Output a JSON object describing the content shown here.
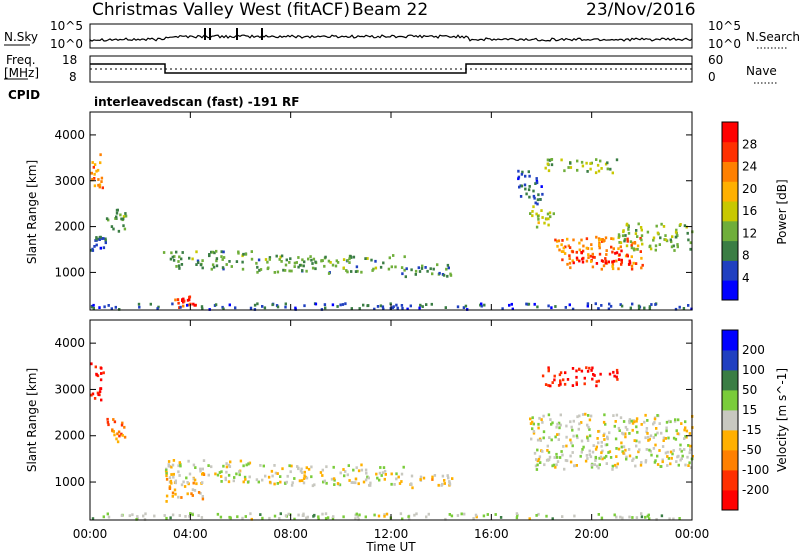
{
  "header": {
    "title": "Christmas Valley West (fitACF)",
    "beam": "Beam 22",
    "date": "23/Nov/2016"
  },
  "noise_panel": {
    "left_label": "N.Sky",
    "right_label": "N.Search",
    "left_ticks": [
      "10^5",
      "10^0"
    ],
    "right_ticks": [
      "10^5",
      "10^0"
    ]
  },
  "freq_panel": {
    "left_label_1": "Freq.",
    "left_label_2": "[MHz]",
    "right_label": "Nave",
    "left_ticks": [
      "18",
      "8"
    ],
    "right_ticks": [
      "60",
      "0"
    ]
  },
  "cpid": {
    "label": "CPID",
    "text": "interleavedscan (fast) -191 RF"
  },
  "axes": {
    "ylabel": "Slant Range [km]",
    "xlabel": "Time UT",
    "yticks": [
      "4000",
      "3000",
      "2000",
      "1000"
    ],
    "xticks": [
      "00:00",
      "04:00",
      "08:00",
      "12:00",
      "16:00",
      "20:00",
      "00:00"
    ]
  },
  "chart_data": [
    {
      "type": "heatmap",
      "title": "",
      "xlabel": "Time UT",
      "ylabel": "Slant Range [km]",
      "xlim": [
        0,
        24
      ],
      "ylim": [
        180,
        4500
      ],
      "colorbar": {
        "label": "Power [dB]",
        "ticks": [
          "28",
          "24",
          "20",
          "16",
          "12",
          "8",
          "4"
        ],
        "range": [
          0,
          30
        ],
        "colors": [
          "#0000ff",
          "#2040c0",
          "#3a7d44",
          "#6fae3a",
          "#c8c800",
          "#ffb000",
          "#ff8000",
          "#ff3000",
          "#ff0000"
        ]
      },
      "regions": [
        {
          "t": [
            0.0,
            0.5
          ],
          "r": [
            2800,
            3600
          ],
          "level": 20
        },
        {
          "t": [
            0.6,
            1.4
          ],
          "r": [
            1900,
            2400
          ],
          "level": 10
        },
        {
          "t": [
            0.0,
            0.6
          ],
          "r": [
            1500,
            1800
          ],
          "level": 6
        },
        {
          "t": [
            2.9,
            6.5
          ],
          "r": [
            1100,
            1500
          ],
          "level": 10
        },
        {
          "t": [
            6.5,
            12.5
          ],
          "r": [
            1000,
            1400
          ],
          "level": 10
        },
        {
          "t": [
            12.5,
            14.5
          ],
          "r": [
            900,
            1200
          ],
          "level": 8
        },
        {
          "t": [
            3.3,
            4.2
          ],
          "r": [
            250,
            500
          ],
          "level": 26
        },
        {
          "t": [
            0.0,
            24.0
          ],
          "r": [
            220,
            350
          ],
          "level": 6
        },
        {
          "t": [
            17.5,
            18.5
          ],
          "r": [
            2000,
            2500
          ],
          "level": 14
        },
        {
          "t": [
            18.5,
            22.0
          ],
          "r": [
            1100,
            1800
          ],
          "level": 22
        },
        {
          "t": [
            19.0,
            21.5
          ],
          "r": [
            1200,
            1500
          ],
          "level": 28
        },
        {
          "t": [
            21.0,
            24.0
          ],
          "r": [
            1500,
            2100
          ],
          "level": 12
        },
        {
          "t": [
            18.0,
            21.0
          ],
          "r": [
            3200,
            3500
          ],
          "level": 12
        },
        {
          "t": [
            17.0,
            18.0
          ],
          "r": [
            2500,
            3300
          ],
          "level": 6
        }
      ]
    },
    {
      "type": "heatmap",
      "title": "",
      "xlabel": "Time UT",
      "ylabel": "Slant Range [km]",
      "xlim": [
        0,
        24
      ],
      "ylim": [
        180,
        4500
      ],
      "colorbar": {
        "label": "Velocity [m s^-1]",
        "ticks": [
          "200",
          "100",
          "50",
          "15",
          "-15",
          "-50",
          "-100",
          "-200"
        ],
        "range": [
          -250,
          250
        ],
        "colors": [
          "#ff0000",
          "#ff3000",
          "#ff8000",
          "#ffb000",
          "#c8c8c0",
          "#7acc3a",
          "#3a7d44",
          "#2040c0",
          "#0000ff"
        ]
      },
      "regions": [
        {
          "t": [
            0.0,
            0.5
          ],
          "r": [
            2800,
            3600
          ],
          "level": -200
        },
        {
          "t": [
            0.6,
            1.5
          ],
          "r": [
            1900,
            2400
          ],
          "level": -100
        },
        {
          "t": [
            2.9,
            6.5
          ],
          "r": [
            1000,
            1500
          ],
          "level": 0
        },
        {
          "t": [
            6.5,
            12.5
          ],
          "r": [
            950,
            1400
          ],
          "level": 0
        },
        {
          "t": [
            12.5,
            14.5
          ],
          "r": [
            900,
            1200
          ],
          "level": -30
        },
        {
          "t": [
            3.0,
            4.5
          ],
          "r": [
            600,
            1200
          ],
          "level": -60
        },
        {
          "t": [
            0.0,
            24.0
          ],
          "r": [
            220,
            350
          ],
          "level": 30
        },
        {
          "t": [
            17.5,
            24.0
          ],
          "r": [
            1300,
            2500
          ],
          "level": 0
        },
        {
          "t": [
            18.0,
            21.0
          ],
          "r": [
            3100,
            3500
          ],
          "level": -200
        }
      ]
    }
  ]
}
